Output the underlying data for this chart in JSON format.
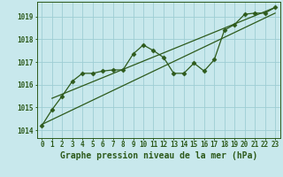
{
  "background_color": "#c8e8ec",
  "grid_color": "#9ecdd4",
  "line_color": "#2d5a1b",
  "xlabel": "Graphe pression niveau de la mer (hPa)",
  "xlabel_fontsize": 7,
  "tick_fontsize": 5.5,
  "ytick_labels": [
    1014,
    1015,
    1016,
    1017,
    1018,
    1019
  ],
  "ylim": [
    1013.65,
    1019.65
  ],
  "xlim": [
    -0.5,
    23.5
  ],
  "hours": [
    0,
    1,
    2,
    3,
    4,
    5,
    6,
    7,
    8,
    9,
    10,
    11,
    12,
    13,
    14,
    15,
    16,
    17,
    18,
    19,
    20,
    21,
    22,
    23
  ],
  "pressure_data": [
    1014.2,
    1014.9,
    1015.5,
    1016.15,
    1016.5,
    1016.5,
    1016.6,
    1016.65,
    1016.65,
    1017.35,
    1017.75,
    1017.5,
    1017.2,
    1016.5,
    1016.5,
    1016.95,
    1016.6,
    1017.1,
    1018.4,
    1018.65,
    1019.1,
    1019.15,
    1019.15,
    1019.4
  ],
  "trend1_x": [
    0,
    23
  ],
  "trend1_y": [
    1014.25,
    1019.15
  ],
  "trend2_x": [
    1,
    23
  ],
  "trend2_y": [
    1015.4,
    1019.4
  ]
}
